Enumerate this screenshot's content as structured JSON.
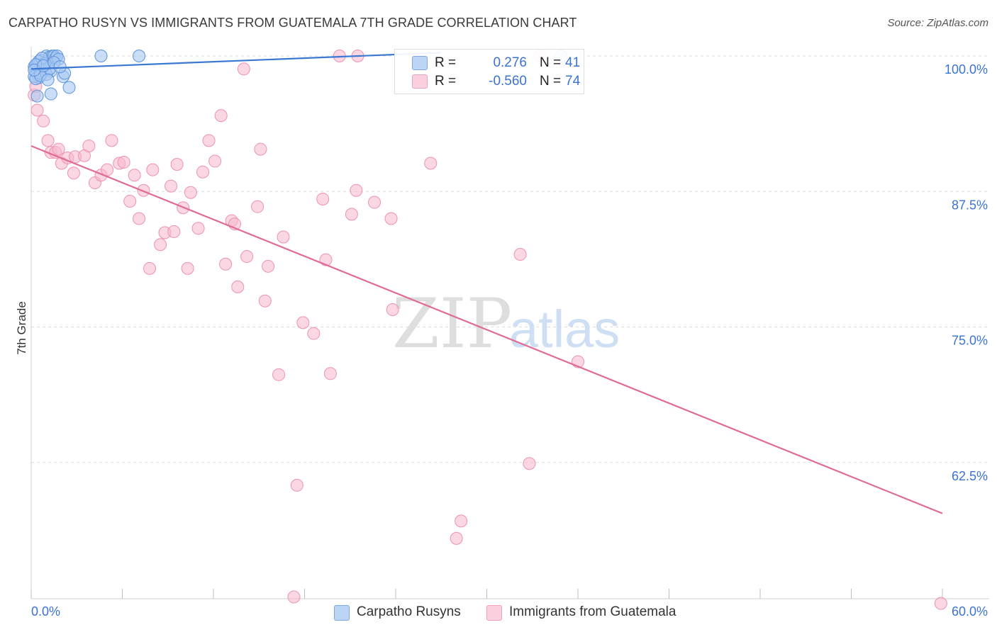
{
  "header": {
    "title": "CARPATHO RUSYN VS IMMIGRANTS FROM GUATEMALA 7TH GRADE CORRELATION CHART",
    "source": "Source: ZipAtlas.com"
  },
  "watermark": {
    "zip": "ZIP",
    "atlas": "atlas"
  },
  "legend": {
    "rows": [
      {
        "r_label": "R =",
        "r_value": "0.276",
        "n_label": "N =",
        "n_value": "41",
        "color": "#8ab4ee"
      },
      {
        "r_label": "R =",
        "r_value": "-0.560",
        "n_label": "N =",
        "n_value": "74",
        "color": "#f4a8c0"
      }
    ]
  },
  "bottom_legend": {
    "items": [
      {
        "label": "Carpatho Rusyns",
        "color": "#8ab4ee"
      },
      {
        "label": "Immigrants from Guatemala",
        "color": "#f4a8c0"
      }
    ]
  },
  "chart_data": {
    "type": "scatter",
    "title": "CARPATHO RUSYN VS IMMIGRANTS FROM GUATEMALA 7TH GRADE CORRELATION CHART",
    "xlabel": "",
    "ylabel": "7th Grade",
    "xlim": [
      0,
      60
    ],
    "ylim": [
      50,
      100
    ],
    "x_tick_labels": [
      "0.0%",
      "60.0%"
    ],
    "y_ticks": [
      62.5,
      75.0,
      87.5,
      100.0
    ],
    "y_tick_labels": [
      "62.5%",
      "75.0%",
      "87.5%",
      "100.0%"
    ],
    "grid": true,
    "legend_position": "top-center",
    "series": [
      {
        "name": "Carpatho Rusyns",
        "color": "#3b78d4",
        "fill": "#a9c8f2",
        "trend": {
          "x": [
            0,
            27
          ],
          "y": [
            98.8,
            100.3
          ]
        },
        "points": [
          [
            0.2,
            99.0
          ],
          [
            0.3,
            98.5
          ],
          [
            0.4,
            99.2
          ],
          [
            0.5,
            98.0
          ],
          [
            0.6,
            99.6
          ],
          [
            0.7,
            98.9
          ],
          [
            0.8,
            99.3
          ],
          [
            0.9,
            98.7
          ],
          [
            1.0,
            100.0
          ],
          [
            1.1,
            99.5
          ],
          [
            1.2,
            99.9
          ],
          [
            1.3,
            98.6
          ],
          [
            1.4,
            100.0
          ],
          [
            1.5,
            100.0
          ],
          [
            1.6,
            99.8
          ],
          [
            1.7,
            100.0
          ],
          [
            0.2,
            98.1
          ],
          [
            0.3,
            97.9
          ],
          [
            0.5,
            99.5
          ],
          [
            0.6,
            98.4
          ],
          [
            0.8,
            99.0
          ],
          [
            1.0,
            98.3
          ],
          [
            1.2,
            98.8
          ],
          [
            0.4,
            96.3
          ],
          [
            1.3,
            96.5
          ],
          [
            2.5,
            97.1
          ],
          [
            2.1,
            98.1
          ],
          [
            1.8,
            99.7
          ],
          [
            0.9,
            99.3
          ],
          [
            0.7,
            99.8
          ],
          [
            0.3,
            99.2
          ],
          [
            0.6,
            98.2
          ],
          [
            1.1,
            97.8
          ],
          [
            2.2,
            98.4
          ],
          [
            4.6,
            100.0
          ],
          [
            7.1,
            100.0
          ],
          [
            34.9,
            100.0
          ],
          [
            0.2,
            98.7
          ],
          [
            0.8,
            99.1
          ],
          [
            1.5,
            99.4
          ],
          [
            1.9,
            99.0
          ]
        ]
      },
      {
        "name": "Immigrants from Guatemala",
        "color": "#e06a96",
        "fill": "#f7b7cc",
        "trend": {
          "x": [
            0,
            60
          ],
          "y": [
            91.7,
            57.8
          ]
        },
        "points": [
          [
            0.2,
            96.4
          ],
          [
            0.4,
            95.0
          ],
          [
            0.8,
            94.0
          ],
          [
            1.1,
            92.2
          ],
          [
            1.3,
            91.1
          ],
          [
            1.6,
            91.1
          ],
          [
            1.8,
            91.4
          ],
          [
            2.0,
            90.1
          ],
          [
            2.4,
            90.6
          ],
          [
            2.8,
            89.2
          ],
          [
            2.9,
            90.7
          ],
          [
            3.5,
            90.8
          ],
          [
            3.8,
            91.7
          ],
          [
            4.2,
            88.3
          ],
          [
            4.6,
            89.0
          ],
          [
            5.0,
            89.5
          ],
          [
            5.3,
            92.2
          ],
          [
            5.8,
            90.1
          ],
          [
            6.1,
            90.2
          ],
          [
            6.5,
            86.6
          ],
          [
            6.8,
            89.0
          ],
          [
            7.1,
            85.0
          ],
          [
            7.4,
            87.6
          ],
          [
            7.8,
            80.4
          ],
          [
            8.0,
            89.5
          ],
          [
            8.5,
            82.6
          ],
          [
            8.8,
            83.7
          ],
          [
            9.2,
            88.0
          ],
          [
            9.4,
            83.8
          ],
          [
            9.6,
            90.0
          ],
          [
            10.0,
            86.0
          ],
          [
            10.3,
            80.4
          ],
          [
            10.5,
            87.4
          ],
          [
            11.0,
            84.1
          ],
          [
            11.3,
            89.3
          ],
          [
            11.7,
            92.2
          ],
          [
            12.1,
            90.3
          ],
          [
            12.5,
            94.5
          ],
          [
            12.8,
            80.8
          ],
          [
            13.2,
            84.8
          ],
          [
            13.4,
            84.5
          ],
          [
            13.6,
            78.7
          ],
          [
            14.0,
            98.8
          ],
          [
            14.2,
            81.5
          ],
          [
            14.9,
            86.1
          ],
          [
            15.1,
            91.4
          ],
          [
            15.4,
            77.4
          ],
          [
            15.6,
            80.6
          ],
          [
            16.3,
            70.6
          ],
          [
            16.6,
            83.3
          ],
          [
            17.3,
            50.1
          ],
          [
            17.5,
            60.4
          ],
          [
            17.9,
            75.4
          ],
          [
            18.6,
            74.4
          ],
          [
            19.2,
            86.8
          ],
          [
            19.4,
            81.2
          ],
          [
            19.7,
            70.7
          ],
          [
            20.3,
            100.0
          ],
          [
            21.1,
            85.4
          ],
          [
            21.4,
            87.6
          ],
          [
            21.5,
            100.0
          ],
          [
            22.6,
            86.5
          ],
          [
            23.7,
            85.0
          ],
          [
            23.8,
            76.6
          ],
          [
            26.3,
            90.1
          ],
          [
            28.0,
            55.5
          ],
          [
            28.3,
            57.1
          ],
          [
            32.2,
            81.7
          ],
          [
            32.8,
            62.4
          ],
          [
            33.5,
            100.0
          ],
          [
            36.0,
            71.8
          ],
          [
            59.9,
            49.5
          ],
          [
            0.3,
            97.2
          ],
          [
            0.6,
            98.6
          ]
        ]
      }
    ]
  }
}
